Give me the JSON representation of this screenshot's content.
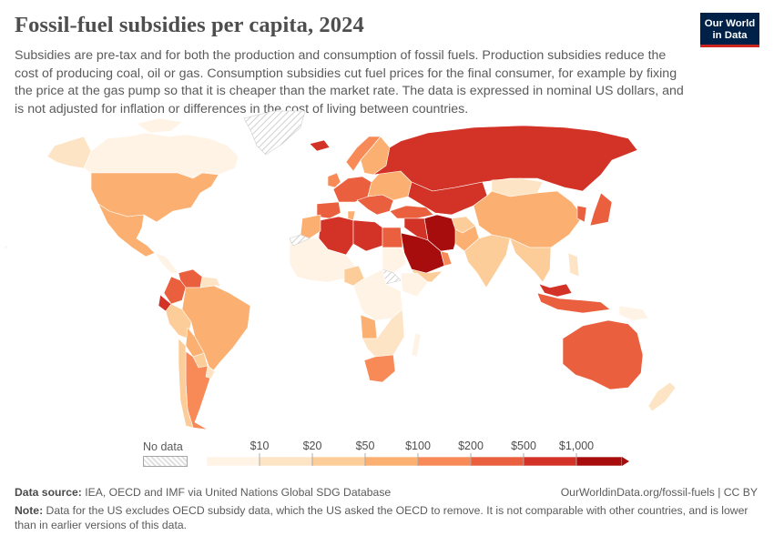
{
  "title": "Fossil-fuel subsidies per capita, 2024",
  "subtitle": "Subsidies are pre-tax and for both the production and consumption of fossil fuels. Production subsidies reduce the cost of producing coal, oil or gas. Consumption subsidies cut fuel prices for the final consumer, for example by fixing the price at the gas pump so that it is cheaper than the market rate. The data is expressed in nominal US dollars, and is not adjusted for inflation or differences in the cost of living between countries.",
  "logo": {
    "line1": "Our World",
    "line2": "in Data"
  },
  "legend": {
    "no_data_label": "No data",
    "ticks": [
      "$10",
      "$20",
      "$50",
      "$100",
      "$200",
      "$500",
      "$1,000"
    ],
    "colors": [
      "#fff3e6",
      "#fde4c4",
      "#fccd99",
      "#fbb071",
      "#f78a57",
      "#ea5f3e",
      "#d33327",
      "#a80d0d"
    ],
    "no_data_color": "#e6e6e6"
  },
  "source_label": "Data source:",
  "source_text": "IEA, OECD and IMF via United Nations Global SDG Database",
  "credit": "OurWorldinData.org/fossil-fuels | CC BY",
  "note_label": "Note:",
  "note_text": "Data for the US excludes OECD subsidy data, which the US asked the OECD to remove. It is not comparable with other countries, and is lower than in earlier versions of this data.",
  "map_regions": [
    {
      "name": "canada",
      "level": 0
    },
    {
      "name": "alaska",
      "level": 1
    },
    {
      "name": "greenland",
      "level": -1
    },
    {
      "name": "usa",
      "level": 3
    },
    {
      "name": "mexico",
      "level": 3
    },
    {
      "name": "central-america",
      "level": 0
    },
    {
      "name": "venezuela",
      "level": 5
    },
    {
      "name": "colombia",
      "level": 5
    },
    {
      "name": "ecuador",
      "level": 6
    },
    {
      "name": "brazil",
      "level": 3
    },
    {
      "name": "peru",
      "level": 2
    },
    {
      "name": "bolivia",
      "level": 3
    },
    {
      "name": "paraguay",
      "level": 2
    },
    {
      "name": "argentina",
      "level": 4
    },
    {
      "name": "chile",
      "level": 2
    },
    {
      "name": "uruguay",
      "level": 1
    },
    {
      "name": "guyana-suriname",
      "level": 1
    },
    {
      "name": "iceland",
      "level": 6
    },
    {
      "name": "norway",
      "level": 4
    },
    {
      "name": "sweden-finland",
      "level": 3
    },
    {
      "name": "western-europe",
      "level": 5
    },
    {
      "name": "iberia",
      "level": 5
    },
    {
      "name": "uk-ireland",
      "level": 4
    },
    {
      "name": "italy-balkans",
      "level": 5
    },
    {
      "name": "eastern-europe",
      "level": 3
    },
    {
      "name": "turkey",
      "level": 5
    },
    {
      "name": "russia",
      "level": 6
    },
    {
      "name": "kazakhstan-central-asia",
      "level": 6
    },
    {
      "name": "mongolia",
      "level": 1
    },
    {
      "name": "china",
      "level": 3
    },
    {
      "name": "japan",
      "level": 5
    },
    {
      "name": "korea",
      "level": 5
    },
    {
      "name": "iran",
      "level": 7
    },
    {
      "name": "iraq-syria",
      "level": 6
    },
    {
      "name": "saudi-arabia",
      "level": 7
    },
    {
      "name": "gulf-states",
      "level": 4
    },
    {
      "name": "yemen",
      "level": 2
    },
    {
      "name": "afghanistan",
      "level": 2
    },
    {
      "name": "pakistan",
      "level": 3
    },
    {
      "name": "india",
      "level": 2
    },
    {
      "name": "southeast-asia",
      "level": 2
    },
    {
      "name": "indonesia",
      "level": 5
    },
    {
      "name": "malaysia",
      "level": 6
    },
    {
      "name": "philippines",
      "level": 1
    },
    {
      "name": "png",
      "level": 0
    },
    {
      "name": "australia",
      "level": 5
    },
    {
      "name": "new-zealand",
      "level": 1
    },
    {
      "name": "algeria",
      "level": 6
    },
    {
      "name": "libya",
      "level": 6
    },
    {
      "name": "egypt",
      "level": 5
    },
    {
      "name": "morocco-tunisia",
      "level": 3
    },
    {
      "name": "west-africa",
      "level": 0
    },
    {
      "name": "nigeria",
      "level": 2
    },
    {
      "name": "sudan",
      "level": 0
    },
    {
      "name": "south-sudan",
      "level": -1
    },
    {
      "name": "ethiopia-east",
      "level": 0
    },
    {
      "name": "central-africa",
      "level": 0
    },
    {
      "name": "angola",
      "level": 3
    },
    {
      "name": "southern-africa",
      "level": 1
    },
    {
      "name": "south-africa",
      "level": 4
    },
    {
      "name": "madagascar",
      "level": 0
    },
    {
      "name": "western-sahara",
      "level": -1
    },
    {
      "name": "antarctic-none",
      "level": 0
    }
  ]
}
